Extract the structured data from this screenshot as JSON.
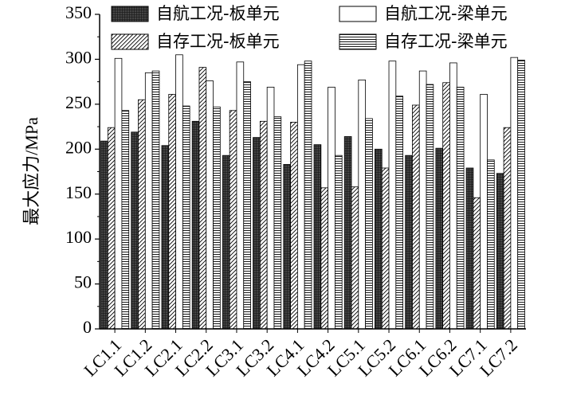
{
  "chart_data": {
    "type": "bar",
    "y_label": "最大应力/MPa",
    "categories": [
      "LC1.1",
      "LC1.2",
      "LC2.1",
      "LC2.2",
      "LC3.1",
      "LC3.2",
      "LC4.1",
      "LC4.2",
      "LC5.1",
      "LC5.2",
      "LC6.1",
      "LC6.2",
      "LC7.1",
      "LC7.2"
    ],
    "series": [
      {
        "name": "自航工况-板单元",
        "pattern": "crosshatch",
        "values": [
          209,
          219,
          204,
          231,
          193,
          213,
          183,
          205,
          214,
          200,
          193,
          201,
          179,
          173
        ]
      },
      {
        "name": "自存工况-板单元",
        "pattern": "diagonal",
        "values": [
          224,
          255,
          261,
          291,
          243,
          231,
          230,
          157,
          158,
          179,
          249,
          274,
          146,
          224
        ]
      },
      {
        "name": "自航工况-梁单元",
        "pattern": "none",
        "values": [
          301,
          285,
          305,
          276,
          297,
          269,
          294,
          269,
          277,
          298,
          287,
          296,
          261,
          302
        ]
      },
      {
        "name": "自存工况-梁单元",
        "pattern": "horizontal",
        "values": [
          243,
          287,
          248,
          247,
          275,
          236,
          298,
          193,
          234,
          259,
          272,
          269,
          188,
          299
        ]
      }
    ],
    "ylim": [
      0,
      350
    ],
    "yticks": [
      0,
      50,
      100,
      150,
      200,
      250,
      300,
      350
    ],
    "legend": "top"
  }
}
